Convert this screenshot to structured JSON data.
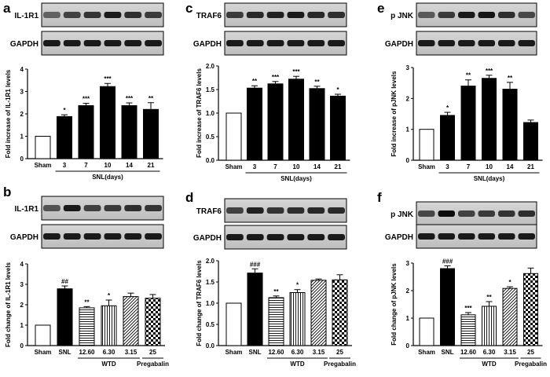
{
  "figure": {
    "wtd_label": "WTD",
    "pregabalin_label": "Pregabalin"
  },
  "chart_data": [
    {
      "panel": "a",
      "type": "bar",
      "protein": "IL-1R1",
      "loading": "GAPDH",
      "ylabel": "Fold increase of IL-1R1 levels",
      "categories": [
        "Sham",
        "3",
        "7",
        "10",
        "14",
        "21"
      ],
      "group_label": "SNL(days)",
      "values": [
        1.0,
        1.88,
        2.37,
        3.22,
        2.37,
        2.2
      ],
      "errors": [
        0,
        0.08,
        0.1,
        0.14,
        0.12,
        0.3
      ],
      "annotations": [
        "",
        "*",
        "***",
        "***",
        "***",
        "**"
      ],
      "ylim": [
        0,
        4
      ],
      "yticks": [
        0,
        1,
        2,
        3,
        4
      ],
      "fills": [
        "white",
        "black",
        "black",
        "black",
        "black",
        "black"
      ]
    },
    {
      "panel": "b",
      "type": "bar",
      "protein": "IL-1R1",
      "loading": "GAPDH",
      "ylabel": "Fold change of IL-1R1 levels",
      "categories": [
        "Sham",
        "SNL",
        "12.60",
        "6.30",
        "3.15",
        "25"
      ],
      "values": [
        1.0,
        2.78,
        1.85,
        1.95,
        2.4,
        2.32
      ],
      "errors": [
        0,
        0.14,
        0.06,
        0.28,
        0.17,
        0.18
      ],
      "annotations": [
        "",
        "##",
        "**",
        "*",
        "",
        ""
      ],
      "ylim": [
        0,
        4
      ],
      "yticks": [
        0,
        1,
        2,
        3,
        4
      ],
      "fills": [
        "white",
        "black",
        "hstripe",
        "vstripe",
        "diag",
        "check"
      ]
    },
    {
      "panel": "c",
      "type": "bar",
      "protein": "TRAF6",
      "loading": "GAPDH",
      "ylabel": "Fold increase of TRAF6 levels",
      "categories": [
        "Sham",
        "3",
        "7",
        "10",
        "14",
        "21"
      ],
      "group_label": "SNL(days)",
      "values": [
        1.0,
        1.53,
        1.62,
        1.72,
        1.52,
        1.36
      ],
      "errors": [
        0,
        0.05,
        0.05,
        0.06,
        0.05,
        0.04
      ],
      "annotations": [
        "",
        "**",
        "***",
        "***",
        "**",
        "*"
      ],
      "ylim": [
        0,
        2.0
      ],
      "yticks": [
        0.0,
        0.5,
        1.0,
        1.5,
        2.0
      ],
      "fills": [
        "white",
        "black",
        "black",
        "black",
        "black",
        "black"
      ]
    },
    {
      "panel": "d",
      "type": "bar",
      "protein": "TRAF6",
      "loading": "GAPDH",
      "ylabel": "Fold change of TRAF6 levels",
      "categories": [
        "Sham",
        "SNL",
        "12.60",
        "6.30",
        "3.15",
        "25"
      ],
      "values": [
        1.0,
        1.71,
        1.13,
        1.25,
        1.54,
        1.55
      ],
      "errors": [
        0,
        0.1,
        0.04,
        0.07,
        0.03,
        0.12
      ],
      "annotations": [
        "",
        "###",
        "**",
        "*",
        "",
        ""
      ],
      "ylim": [
        0,
        2.0
      ],
      "yticks": [
        0.0,
        0.5,
        1.0,
        1.5,
        2.0
      ],
      "fills": [
        "white",
        "black",
        "hstripe",
        "vstripe",
        "diag",
        "check"
      ]
    },
    {
      "panel": "e",
      "type": "bar",
      "protein": "p JNK",
      "loading": "GAPDH",
      "ylabel": "Fold increase of pJNK levels",
      "categories": [
        "Sham",
        "3",
        "7",
        "10",
        "14",
        "21"
      ],
      "group_label": "SNL(days)",
      "values": [
        1.0,
        1.45,
        2.4,
        2.65,
        2.3,
        1.22
      ],
      "errors": [
        0,
        0.1,
        0.2,
        0.1,
        0.22,
        0.08
      ],
      "annotations": [
        "",
        "*",
        "**",
        "***",
        "**",
        ""
      ],
      "ylim": [
        0,
        3
      ],
      "yticks": [
        0,
        1,
        2,
        3
      ],
      "fills": [
        "white",
        "black",
        "black",
        "black",
        "black",
        "black"
      ]
    },
    {
      "panel": "f",
      "type": "bar",
      "protein": "p JNK",
      "loading": "GAPDH",
      "ylabel": "Fold change of pJNK levels",
      "categories": [
        "Sham",
        "SNL",
        "12.60",
        "6.30",
        "3.15",
        "25"
      ],
      "values": [
        1.0,
        2.8,
        1.12,
        1.43,
        2.08,
        2.62
      ],
      "errors": [
        0,
        0.1,
        0.08,
        0.17,
        0.06,
        0.2
      ],
      "annotations": [
        "",
        "###",
        "***",
        "**",
        "*",
        ""
      ],
      "ylim": [
        0,
        3
      ],
      "yticks": [
        0,
        1,
        2,
        3
      ],
      "fills": [
        "white",
        "black",
        "hstripe",
        "vstripe",
        "diag",
        "check"
      ]
    }
  ]
}
